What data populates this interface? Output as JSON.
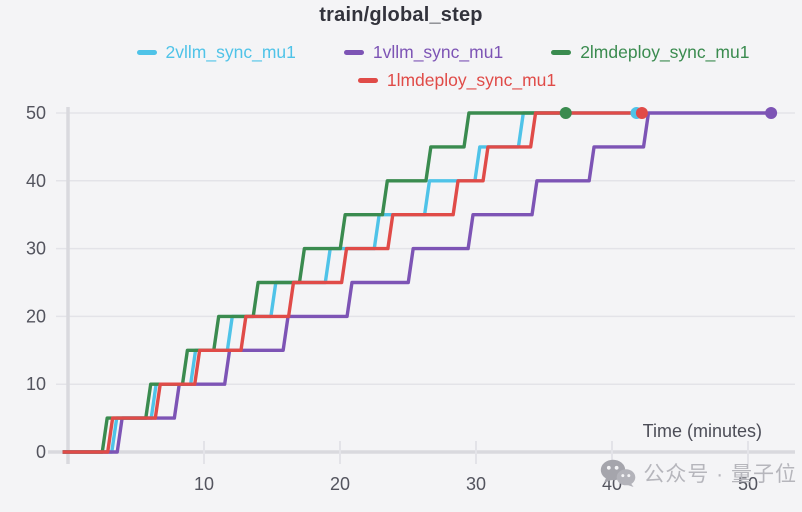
{
  "title": "train/global_step",
  "axes": {
    "x_label": "Time (minutes)"
  },
  "watermark": {
    "text": "公众号 · 量子位"
  },
  "colors": {
    "background": "#f4f4f6",
    "grid": "#e3e3e8",
    "axis": "#d9d9de",
    "tick_text": "#53545e",
    "title_text": "#32333c",
    "watermark_text": "#b6b6bc"
  },
  "chart_data": {
    "type": "line",
    "subtype": "step",
    "title": "train/global_step",
    "xlabel": "Time (minutes)",
    "ylabel": "",
    "xlim": [
      -0.5,
      53.5
    ],
    "ylim": [
      0,
      50
    ],
    "x_ticks": [
      10,
      20,
      30,
      40,
      50
    ],
    "y_ticks": [
      0,
      10,
      20,
      30,
      40,
      50
    ],
    "grid": "horizontal",
    "legend_position": "top",
    "step_height": 5,
    "series": [
      {
        "name": "2vllm_sync_mu1",
        "color": "#4fc3e8",
        "start_time": -0.4,
        "step_times": [
          3.4,
          6.3,
          9.2,
          11.9,
          15.1,
          19.1,
          22.7,
          26.4,
          30.1,
          33.3
        ],
        "end_time": 41.8,
        "final_value": 50
      },
      {
        "name": "1vllm_sync_mu1",
        "color": "#7d54b5",
        "start_time": -0.4,
        "step_times": [
          3.8,
          8.0,
          11.7,
          16.0,
          20.7,
          25.2,
          29.6,
          34.3,
          38.5,
          42.5
        ],
        "end_time": 51.7,
        "final_value": 50
      },
      {
        "name": "2lmdeploy_sync_mu1",
        "color": "#3a8b4f",
        "start_time": -0.4,
        "step_times": [
          2.7,
          5.9,
          8.6,
          10.9,
          13.8,
          17.2,
          20.2,
          23.3,
          26.5,
          29.3
        ],
        "end_time": 36.6,
        "final_value": 50
      },
      {
        "name": "1lmdeploy_sync_mu1",
        "color": "#e04b48",
        "start_time": -0.4,
        "step_times": [
          3.1,
          6.6,
          9.5,
          12.9,
          16.4,
          20.3,
          23.7,
          28.5,
          30.7,
          34.2
        ],
        "end_time": 42.2,
        "final_value": 50
      }
    ],
    "legend_rows": [
      [
        "2vllm_sync_mu1",
        "1vllm_sync_mu1",
        "2lmdeploy_sync_mu1"
      ],
      [
        "1lmdeploy_sync_mu1"
      ]
    ]
  }
}
